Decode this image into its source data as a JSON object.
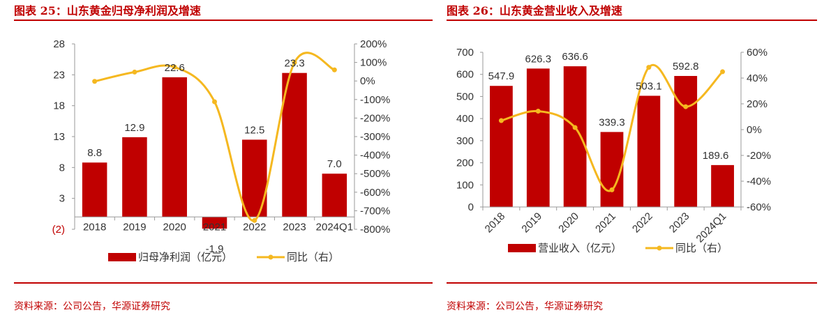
{
  "figures": [
    {
      "title": "图表 25：山东黄金归母净利润及增速",
      "source": "资料来源：公司公告，华源证券研究"
    },
    {
      "title": "图表 26：山东黄金营业收入及增速",
      "source": "资料来源：公司公告，华源证券研究"
    }
  ],
  "chart_data": [
    {
      "type": "bar",
      "categories": [
        "2018",
        "2019",
        "2020",
        "2021",
        "2022",
        "2023",
        "2024Q1"
      ],
      "series": [
        {
          "name": "归母净利润（亿元）",
          "type": "bar",
          "axis": "left",
          "values": [
            8.8,
            12.9,
            22.6,
            -1.9,
            12.5,
            23.3,
            7.0
          ],
          "color": "#c00000"
        },
        {
          "name": "同比（右）",
          "type": "line",
          "axis": "right",
          "values": [
            -2,
            48,
            75,
            -112,
            -752,
            100,
            60
          ],
          "color": "#f5b820"
        }
      ],
      "data_labels": [
        "8.8",
        "12.9",
        "22.6",
        "-1.9",
        "12.5",
        "23.3",
        "7.0"
      ],
      "y_left": {
        "min": -2,
        "max": 28,
        "ticks": [
          -2,
          3,
          8,
          13,
          18,
          23,
          28
        ],
        "tick_labels": [
          "(2)",
          "3",
          "8",
          "13",
          "18",
          "23",
          "28"
        ]
      },
      "y_right": {
        "min": -800,
        "max": 200,
        "ticks": [
          -800,
          -700,
          -600,
          -500,
          -400,
          -300,
          -200,
          -100,
          0,
          100,
          200
        ],
        "tick_labels": [
          "-800%",
          "-700%",
          "-600%",
          "-500%",
          "-400%",
          "-300%",
          "-200%",
          "-100%",
          "0%",
          "100%",
          "200%"
        ]
      },
      "legend_position": "bottom",
      "grid": false
    },
    {
      "type": "bar",
      "categories": [
        "2018",
        "2019",
        "2020",
        "2021",
        "2022",
        "2023",
        "2024Q1"
      ],
      "series": [
        {
          "name": "营业收入（亿元）",
          "type": "bar",
          "axis": "left",
          "values": [
            547.9,
            626.3,
            636.6,
            339.3,
            503.1,
            592.8,
            189.6
          ],
          "color": "#c00000"
        },
        {
          "name": "同比（右）",
          "type": "line",
          "axis": "right",
          "values": [
            7,
            14.3,
            1.6,
            -46.7,
            48.3,
            17.8,
            44.9
          ],
          "color": "#f5b820"
        }
      ],
      "data_labels": [
        "547.9",
        "626.3",
        "636.6",
        "339.3",
        "503.1",
        "592.8",
        "189.6"
      ],
      "y_left": {
        "min": 0,
        "max": 700,
        "ticks": [
          0,
          100,
          200,
          300,
          400,
          500,
          600,
          700
        ],
        "tick_labels": [
          "0",
          "100",
          "200",
          "300",
          "400",
          "500",
          "600",
          "700"
        ]
      },
      "y_right": {
        "min": -60,
        "max": 60,
        "ticks": [
          -60,
          -40,
          -20,
          0,
          20,
          40,
          60
        ],
        "tick_labels": [
          "-60%",
          "-40%",
          "-20%",
          "0%",
          "20%",
          "40%",
          "60%"
        ]
      },
      "legend_position": "bottom",
      "grid": false
    }
  ]
}
